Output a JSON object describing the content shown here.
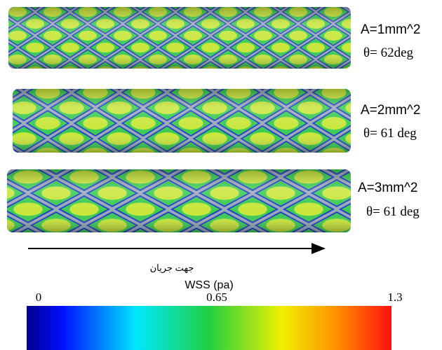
{
  "panels": [
    {
      "area": "A=1mm^2",
      "angle": "θ= 62deg"
    },
    {
      "area": "A=2mm^2",
      "angle": "θ= 61 deg"
    },
    {
      "area": "A=3mm^2",
      "angle": "θ= 61 deg"
    }
  ],
  "flow_direction": "جهت جریان",
  "colorbar": {
    "label": "WSS (pa)",
    "lim": [
      0,
      1.3
    ],
    "ticks": [
      0,
      0.65,
      1.3
    ]
  }
}
